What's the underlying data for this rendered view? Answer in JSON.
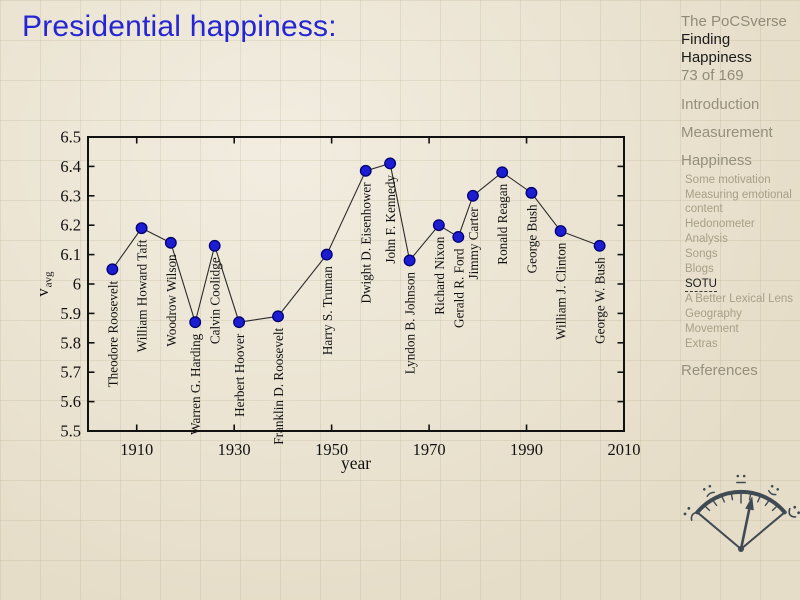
{
  "slide": {
    "title": "Presidential happiness:"
  },
  "sidebar": {
    "brand": "The PoCSverse",
    "deck_title": "Finding Happiness",
    "slide_number": "73 of 169",
    "nav": [
      {
        "label": "Introduction",
        "level": 1
      },
      {
        "label": "Measurement",
        "level": 1
      },
      {
        "label": "Happiness",
        "level": 1
      },
      {
        "label": "Some motivation",
        "level": 2
      },
      {
        "label": "Measuring emotional content",
        "level": 2
      },
      {
        "label": "Hedonometer",
        "level": 2
      },
      {
        "label": "Analysis",
        "level": 2
      },
      {
        "label": "Songs",
        "level": 2
      },
      {
        "label": "Blogs",
        "level": 2
      },
      {
        "label": "SOTU",
        "level": 2,
        "active": true
      },
      {
        "label": "A Better Lexical Lens",
        "level": 2
      },
      {
        "label": "Geography",
        "level": 2
      },
      {
        "label": "Movement",
        "level": 2
      },
      {
        "label": "Extras",
        "level": 2
      },
      {
        "label": "References",
        "level": 1
      }
    ]
  },
  "chart_data": {
    "type": "line",
    "title": "",
    "xlabel": "year",
    "ylabel": "v_avg",
    "ylabel_base": "v",
    "ylabel_sub": "avg",
    "xlim": [
      1900,
      2010
    ],
    "ylim": [
      5.5,
      6.5
    ],
    "x_ticks": [
      1910,
      1930,
      1950,
      1970,
      1990,
      2010
    ],
    "y_ticks": [
      5.5,
      5.6,
      5.7,
      5.8,
      5.9,
      6.0,
      6.1,
      6.2,
      6.3,
      6.4,
      6.5
    ],
    "y_tick_labels": [
      "5.5",
      "5.6",
      "5.7",
      "5.8",
      "5.9",
      "6",
      "6.1",
      "6.2",
      "6.3",
      "6.4",
      "6.5"
    ],
    "grid": false,
    "legend": null,
    "marker_color": "#1c1cd2",
    "marker_edge_color": "#00006e",
    "line_color": "#2b2b2b",
    "axis_color": "#111111",
    "points": [
      {
        "president": "Theodore Roosevelt",
        "year": 1905,
        "v_avg": 6.05
      },
      {
        "president": "William Howard Taft",
        "year": 1911,
        "v_avg": 6.19
      },
      {
        "president": "Woodrow Wilson",
        "year": 1917,
        "v_avg": 6.14
      },
      {
        "president": "Warren G. Harding",
        "year": 1922,
        "v_avg": 5.87
      },
      {
        "president": "Calvin Coolidge",
        "year": 1926,
        "v_avg": 6.13
      },
      {
        "president": "Herbert Hoover",
        "year": 1931,
        "v_avg": 5.87
      },
      {
        "president": "Franklin D. Roosevelt",
        "year": 1939,
        "v_avg": 5.89
      },
      {
        "president": "Harry S. Truman",
        "year": 1949,
        "v_avg": 6.1
      },
      {
        "president": "Dwight D. Eisenhower",
        "year": 1957,
        "v_avg": 6.385
      },
      {
        "president": "John F. Kennedy",
        "year": 1962,
        "v_avg": 6.41
      },
      {
        "president": "Lyndon B. Johnson",
        "year": 1966,
        "v_avg": 6.08
      },
      {
        "president": "Richard Nixon",
        "year": 1972,
        "v_avg": 6.2
      },
      {
        "president": "Gerald R. Ford",
        "year": 1976,
        "v_avg": 6.16
      },
      {
        "president": "Jimmy Carter",
        "year": 1979,
        "v_avg": 6.3
      },
      {
        "president": "Ronald Reagan",
        "year": 1985,
        "v_avg": 6.38
      },
      {
        "president": "George Bush",
        "year": 1991,
        "v_avg": 6.31
      },
      {
        "president": "William J. Clinton",
        "year": 1997,
        "v_avg": 6.18
      },
      {
        "president": "George W. Bush",
        "year": 2005,
        "v_avg": 6.13
      }
    ]
  },
  "icons": {
    "gauge": "hedonometer-gauge-icon"
  }
}
